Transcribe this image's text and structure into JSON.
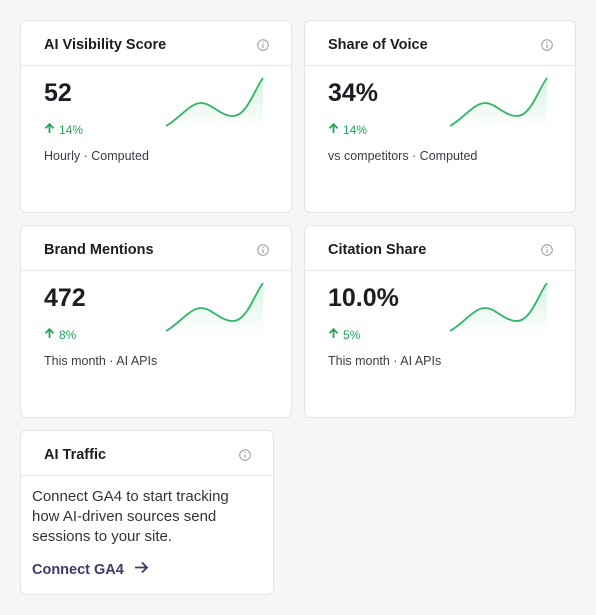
{
  "cards": [
    {
      "title": "AI Visibility Score",
      "value": "52",
      "change": "14%",
      "caption": "Hourly · Computed"
    },
    {
      "title": "Share of Voice",
      "value": "34%",
      "change": "14%",
      "caption": "vs competitors · Computed"
    },
    {
      "title": "Brand Mentions",
      "value": "472",
      "change": "8%",
      "caption": "This month · AI APIs"
    },
    {
      "title": "Citation Share",
      "value": "10.0%",
      "change": "5%",
      "caption": "This month · AI APIs"
    }
  ],
  "traffic": {
    "title": "AI Traffic",
    "body": "Connect GA4 to start tracking how AI-driven sources send sessions to your site.",
    "link": "Connect GA4"
  }
}
